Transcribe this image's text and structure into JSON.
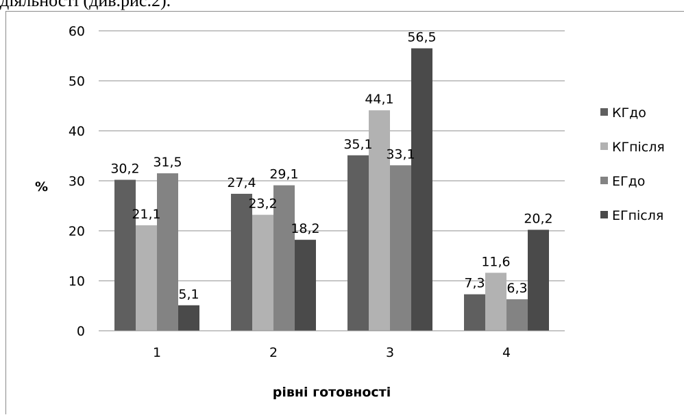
{
  "page": {
    "header_text": "діяльності (див.рис.2)."
  },
  "chart_data": {
    "type": "bar",
    "title": "",
    "xlabel": "рівні готовності",
    "ylabel": "%",
    "categories": [
      "1",
      "2",
      "3",
      "4"
    ],
    "yticks": [
      "0",
      "10",
      "20",
      "30",
      "40",
      "50",
      "60"
    ],
    "ylim": [
      0,
      60
    ],
    "grid": true,
    "legend_position": "right",
    "series": [
      {
        "name": "КГдо",
        "values": [
          30.2,
          27.4,
          35.1,
          7.3
        ],
        "labels": [
          "30,2",
          "27,4",
          "35,1",
          "7,3"
        ],
        "color": "#5f5f5f"
      },
      {
        "name": "КГпісля",
        "values": [
          21.1,
          23.2,
          44.1,
          11.6
        ],
        "labels": [
          "21,1",
          "23,2",
          "44,1",
          "11,6"
        ],
        "color": "#b2b2b2"
      },
      {
        "name": "ЕГдо",
        "values": [
          31.5,
          29.1,
          33.1,
          6.3
        ],
        "labels": [
          "31,5",
          "29,1",
          "33,1",
          "6,3"
        ],
        "color": "#838383"
      },
      {
        "name": "ЕГпісля",
        "values": [
          5.1,
          18.2,
          56.5,
          20.2
        ],
        "labels": [
          "5,1",
          "18,2",
          "56,5",
          "20,2"
        ],
        "color": "#4a4a4a"
      }
    ]
  }
}
